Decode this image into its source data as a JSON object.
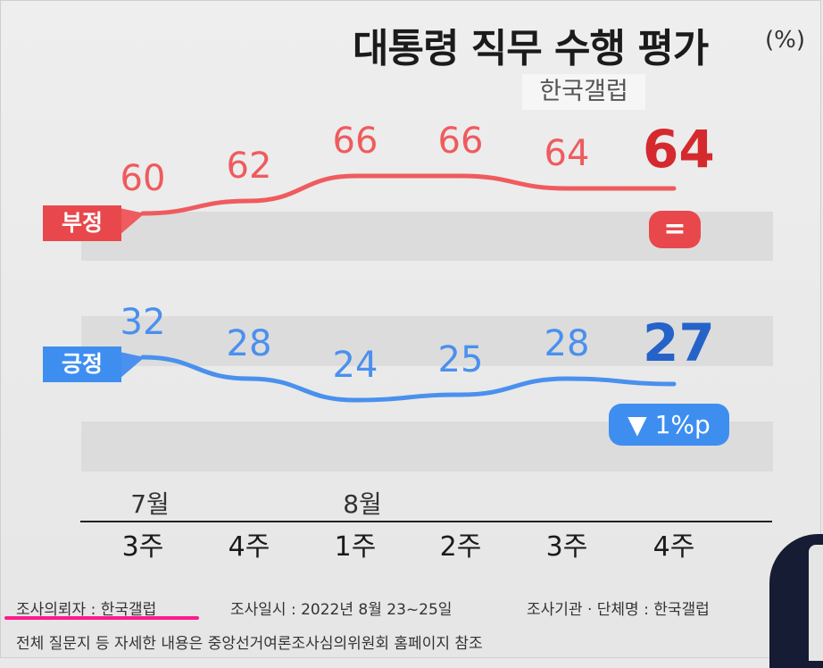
{
  "title": "대통령 직무 수행 평가",
  "unit": "(%)",
  "source": "한국갤럽",
  "badges": {
    "negative_change": "=",
    "positive_change": "▼ 1%p"
  },
  "footer": {
    "requester": "조사의뢰자 : 한국갤럽",
    "dates": "조사일시 : 2022년 8월 23~25일",
    "agency": "조사기관 · 단체명 : 한국갤럽",
    "note": "전체 질문지 등 자세한 내용은 중앙선거여론조사심의위원회 홈페이지 참조"
  },
  "colors": {
    "negative": "#ef5b5e",
    "positive": "#4a90ee",
    "negative_latest": "#d42a2e",
    "positive_latest": "#2563c9"
  },
  "chart_data": {
    "type": "line",
    "categories": [
      "3주",
      "4주",
      "1주",
      "2주",
      "3주",
      "4주"
    ],
    "month_labels": [
      {
        "index": 0,
        "label": "7월"
      },
      {
        "index": 2,
        "label": "8월"
      }
    ],
    "series": [
      {
        "name": "부정",
        "values": [
          60,
          62,
          66,
          66,
          64,
          64
        ]
      },
      {
        "name": "긍정",
        "values": [
          32,
          28,
          24,
          25,
          28,
          27
        ]
      }
    ]
  }
}
